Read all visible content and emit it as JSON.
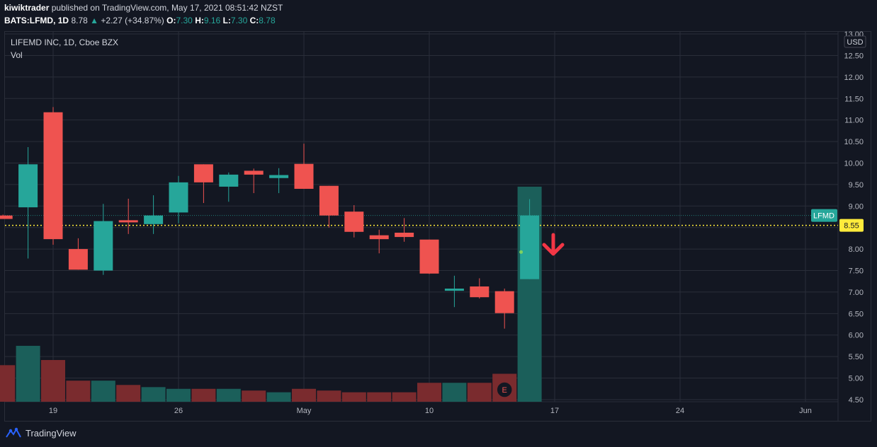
{
  "header": {
    "author": "kiwiktrader",
    "published_text": "published on TradingView.com, May 17, 2021 08:51:42 NZST",
    "symbol": "BATS:LFMD, 1D",
    "last": "8.78",
    "change_arrow": "▲",
    "change": "+2.27 (+34.87%)",
    "o_label": "O:",
    "o_value": "7.30",
    "h_label": "H:",
    "h_value": "9.16",
    "l_label": "L:",
    "l_value": "7.30",
    "c_label": "C:",
    "c_value": "8.78"
  },
  "legend": {
    "title": "LIFEMD INC, 1D, Cboe BZX",
    "volume_label": "Vol"
  },
  "footer": {
    "brand": "TradingView"
  },
  "colors": {
    "background": "#131722",
    "grid": "#2a2e39",
    "up": "#26a69a",
    "down": "#ef5350",
    "vol_up": "#1b5f5a",
    "vol_down": "#7a2b2e",
    "hline": "#ffeb3b",
    "arrow": "#f23645",
    "text": "#b2b5be"
  },
  "chart_data": {
    "type": "candlestick",
    "currency_label": "USD",
    "ylim": [
      4.45,
      13.05
    ],
    "y_ticks": [
      "13.00",
      "12.50",
      "12.00",
      "11.50",
      "11.00",
      "10.50",
      "10.00",
      "9.50",
      "9.00",
      "8.50",
      "8.00",
      "7.50",
      "7.00",
      "6.50",
      "6.00",
      "5.50",
      "5.00",
      "4.50"
    ],
    "x_ticks": [
      {
        "label": "19",
        "day": 0
      },
      {
        "label": "26",
        "day": 5
      },
      {
        "label": "May",
        "day": 10
      },
      {
        "label": "10",
        "day": 15
      },
      {
        "label": "17",
        "day": 20
      },
      {
        "label": "24",
        "day": 25
      },
      {
        "label": "Jun",
        "day": 30
      }
    ],
    "candles": [
      {
        "day": -2,
        "o": 8.78,
        "h": 8.8,
        "l": 8.7,
        "c": 8.7
      },
      {
        "day": -1,
        "o": 8.97,
        "h": 10.37,
        "l": 7.78,
        "c": 9.97
      },
      {
        "day": 0,
        "o": 11.18,
        "h": 11.3,
        "l": 8.1,
        "c": 8.23
      },
      {
        "day": 1,
        "o": 8.0,
        "h": 8.25,
        "l": 7.52,
        "c": 7.52
      },
      {
        "day": 2,
        "o": 7.5,
        "h": 9.05,
        "l": 7.4,
        "c": 8.65
      },
      {
        "day": 3,
        "o": 8.67,
        "h": 9.17,
        "l": 8.35,
        "c": 8.62
      },
      {
        "day": 4,
        "o": 8.58,
        "h": 9.25,
        "l": 8.35,
        "c": 8.78
      },
      {
        "day": 5,
        "o": 8.85,
        "h": 9.7,
        "l": 8.6,
        "c": 9.55
      },
      {
        "day": 6,
        "o": 9.97,
        "h": 9.97,
        "l": 9.07,
        "c": 9.55
      },
      {
        "day": 7,
        "o": 9.45,
        "h": 9.78,
        "l": 9.1,
        "c": 9.73
      },
      {
        "day": 8,
        "o": 9.82,
        "h": 9.87,
        "l": 9.3,
        "c": 9.73
      },
      {
        "day": 9,
        "o": 9.65,
        "h": 9.88,
        "l": 9.3,
        "c": 9.72
      },
      {
        "day": 10,
        "o": 9.98,
        "h": 10.45,
        "l": 9.4,
        "c": 9.4
      },
      {
        "day": 11,
        "o": 9.47,
        "h": 9.47,
        "l": 8.5,
        "c": 8.78
      },
      {
        "day": 12,
        "o": 8.87,
        "h": 9.02,
        "l": 8.27,
        "c": 8.4
      },
      {
        "day": 13,
        "o": 8.32,
        "h": 8.45,
        "l": 7.9,
        "c": 8.23
      },
      {
        "day": 14,
        "o": 8.38,
        "h": 8.72,
        "l": 8.17,
        "c": 8.28
      },
      {
        "day": 15,
        "o": 8.22,
        "h": 8.22,
        "l": 7.42,
        "c": 7.43
      },
      {
        "day": 16,
        "o": 7.03,
        "h": 7.38,
        "l": 6.65,
        "c": 7.08
      },
      {
        "day": 17,
        "o": 7.13,
        "h": 7.32,
        "l": 6.85,
        "c": 6.88
      },
      {
        "day": 18,
        "o": 7.02,
        "h": 7.08,
        "l": 6.15,
        "c": 6.51
      },
      {
        "day": 19,
        "o": 7.3,
        "h": 9.16,
        "l": 7.3,
        "c": 8.78
      }
    ],
    "volume_bars": [
      {
        "day": -2,
        "dir": "down",
        "vol": 0.85
      },
      {
        "day": -1,
        "dir": "up",
        "vol": 1.3
      },
      {
        "day": 0,
        "dir": "down",
        "vol": 0.97
      },
      {
        "day": 1,
        "dir": "down",
        "vol": 0.49
      },
      {
        "day": 2,
        "dir": "up",
        "vol": 0.49
      },
      {
        "day": 3,
        "dir": "down",
        "vol": 0.39
      },
      {
        "day": 4,
        "dir": "up",
        "vol": 0.34
      },
      {
        "day": 5,
        "dir": "up",
        "vol": 0.3
      },
      {
        "day": 6,
        "dir": "down",
        "vol": 0.3
      },
      {
        "day": 7,
        "dir": "up",
        "vol": 0.3
      },
      {
        "day": 8,
        "dir": "down",
        "vol": 0.26
      },
      {
        "day": 9,
        "dir": "up",
        "vol": 0.22
      },
      {
        "day": 10,
        "dir": "down",
        "vol": 0.3
      },
      {
        "day": 11,
        "dir": "down",
        "vol": 0.26
      },
      {
        "day": 12,
        "dir": "down",
        "vol": 0.22
      },
      {
        "day": 13,
        "dir": "down",
        "vol": 0.22
      },
      {
        "day": 14,
        "dir": "down",
        "vol": 0.22
      },
      {
        "day": 15,
        "dir": "down",
        "vol": 0.44
      },
      {
        "day": 16,
        "dir": "up",
        "vol": 0.44
      },
      {
        "day": 17,
        "dir": "down",
        "vol": 0.44
      },
      {
        "day": 18,
        "dir": "down",
        "vol": 0.65
      },
      {
        "day": 19,
        "dir": "up",
        "vol": 5.0
      }
    ],
    "horizontal_line": {
      "value": 8.55,
      "label": "8.55"
    },
    "last_price": {
      "value": 8.78,
      "label": "LFMD"
    },
    "earnings_marker": {
      "day": 18,
      "label": "E"
    },
    "down_arrow_annotation": {
      "day": 20,
      "value": 8.1
    },
    "grid": true
  }
}
